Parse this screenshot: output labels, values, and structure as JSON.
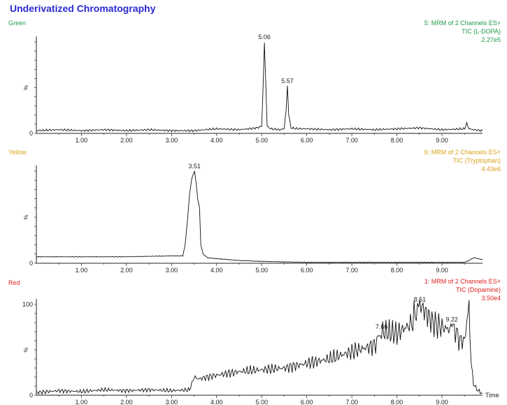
{
  "title": "Underivatized Chromatography",
  "x_axis_label": "Time",
  "colors": {
    "title": "#2a2ad0",
    "trace": "#111111",
    "axis": "#222222"
  },
  "chart_data": [
    {
      "type": "line",
      "panel_name": "Green",
      "panel_color": "#1f9a4a",
      "header_lines": [
        "5: MRM of 2 Channels ES+",
        "TIC (L-DOPA)",
        "2.27e5"
      ],
      "ylabel": "%",
      "yticks": [
        "0"
      ],
      "xticks": [
        "1.00",
        "2.00",
        "3.00",
        "4.00",
        "5.00",
        "6.00",
        "7.00",
        "8.00",
        "9.00"
      ],
      "xlim": [
        0.0,
        9.9
      ],
      "ylim": [
        0,
        100
      ],
      "peak_labels": [
        {
          "x": 5.06,
          "y": 100,
          "text": "5.06"
        },
        {
          "x": 5.57,
          "y": 52,
          "text": "5.57"
        }
      ],
      "series": [
        {
          "x": [
            0.0,
            0.5,
            1.0,
            1.5,
            2.0,
            2.5,
            3.0,
            3.5,
            4.0,
            4.5,
            4.9,
            5.0,
            5.03,
            5.06,
            5.09,
            5.12,
            5.2,
            5.4,
            5.5,
            5.54,
            5.57,
            5.6,
            5.65,
            5.8,
            6.0,
            6.5,
            7.0,
            7.5,
            8.0,
            8.5,
            9.0,
            9.5,
            9.55,
            9.6,
            9.7,
            9.9
          ],
          "y": [
            3,
            4,
            3,
            4,
            3,
            4,
            3,
            3,
            5,
            4,
            6,
            8,
            50,
            100,
            55,
            8,
            5,
            4,
            5,
            25,
            52,
            20,
            6,
            5,
            5,
            4,
            5,
            4,
            5,
            6,
            4,
            5,
            11,
            5,
            4,
            3
          ]
        }
      ]
    },
    {
      "type": "line",
      "panel_name": "Yellow",
      "panel_color": "#d9a21a",
      "header_lines": [
        "6: MRM of 2 Channels ES+",
        "TIC (Tryptophan)",
        "4.43e6"
      ],
      "ylabel": "%",
      "yticks": [
        "0"
      ],
      "xticks": [
        "1.00",
        "2.00",
        "3.00",
        "4.00",
        "5.00",
        "6.00",
        "7.00",
        "8.00",
        "9.00"
      ],
      "xlim": [
        0.0,
        9.9
      ],
      "ylim": [
        0,
        100
      ],
      "peak_labels": [
        {
          "x": 3.51,
          "y": 100,
          "text": "3.51"
        }
      ],
      "series": [
        {
          "x": [
            0.0,
            1.0,
            2.0,
            3.0,
            3.25,
            3.3,
            3.35,
            3.4,
            3.45,
            3.51,
            3.55,
            3.58,
            3.62,
            3.65,
            3.7,
            3.8,
            4.0,
            4.5,
            5.0,
            6.0,
            7.0,
            8.0,
            9.0,
            9.5,
            9.6,
            9.7,
            9.9
          ],
          "y": [
            7,
            7,
            7,
            8,
            8,
            20,
            45,
            75,
            92,
            100,
            85,
            70,
            60,
            20,
            10,
            6,
            5,
            3,
            2,
            1,
            1,
            1,
            1,
            1,
            3,
            6,
            4
          ]
        }
      ]
    },
    {
      "type": "line",
      "panel_name": "Red",
      "panel_color": "#e02020",
      "header_lines": [
        "1: MRM of 2 Channels ES+",
        "TIC (Dopamine)",
        "3.50e4"
      ],
      "ylabel": "%",
      "yticks": [
        "0",
        "100"
      ],
      "xticks": [
        "1.00",
        "2.00",
        "3.00",
        "4.00",
        "5.00",
        "6.00",
        "7.00",
        "8.00",
        "9.00"
      ],
      "xlim": [
        0.0,
        9.9
      ],
      "ylim": [
        0,
        100
      ],
      "peak_labels": [
        {
          "x": 7.66,
          "y": 70,
          "text": "7.66"
        },
        {
          "x": 8.51,
          "y": 100,
          "text": "8.51"
        },
        {
          "x": 9.22,
          "y": 78,
          "text": "9.22"
        }
      ],
      "series": [
        {
          "x": [
            0.0,
            0.5,
            1.0,
            1.5,
            2.0,
            2.5,
            3.0,
            3.4,
            3.5,
            3.6,
            4.0,
            4.5,
            5.0,
            5.5,
            6.0,
            6.5,
            7.0,
            7.5,
            7.66,
            8.0,
            8.3,
            8.51,
            8.8,
            9.0,
            9.2,
            9.22,
            9.4,
            9.5,
            9.6,
            9.62,
            9.65,
            9.7,
            9.8,
            9.9
          ],
          "y": [
            3,
            5,
            4,
            6,
            5,
            6,
            5,
            6,
            20,
            18,
            22,
            26,
            28,
            30,
            35,
            40,
            48,
            55,
            70,
            68,
            78,
            100,
            80,
            75,
            72,
            78,
            60,
            60,
            100,
            60,
            35,
            12,
            5,
            2
          ]
        }
      ]
    }
  ]
}
